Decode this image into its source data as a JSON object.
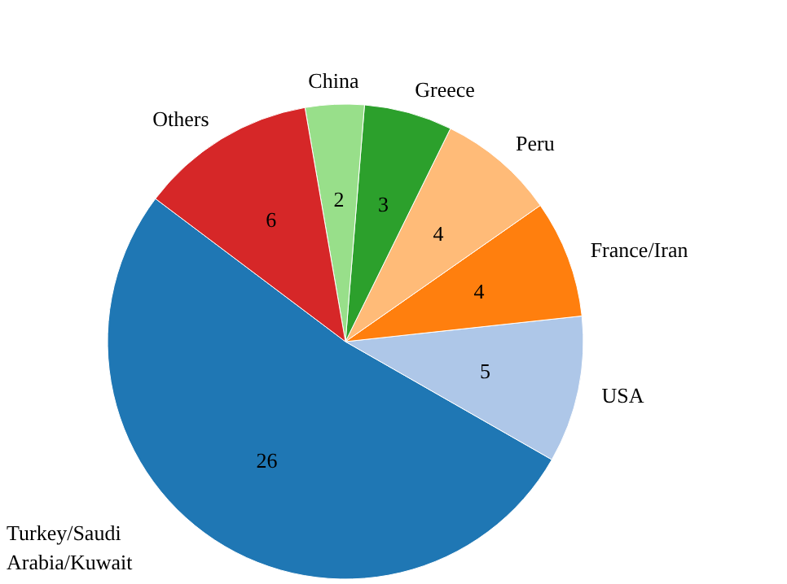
{
  "chart_data": {
    "type": "pie",
    "categories": [
      "Turkey/Saudi Arabia/Kuwait",
      "USA",
      "France/Iran",
      "Peru",
      "Greece",
      "China",
      "Others"
    ],
    "values": [
      26,
      5,
      4,
      4,
      3,
      2,
      6
    ],
    "colors": [
      "#1f77b4",
      "#aec7e8",
      "#ff7f0e",
      "#ffbb78",
      "#2ca02c",
      "#98df8a",
      "#d62728"
    ],
    "data_labels": true
  }
}
